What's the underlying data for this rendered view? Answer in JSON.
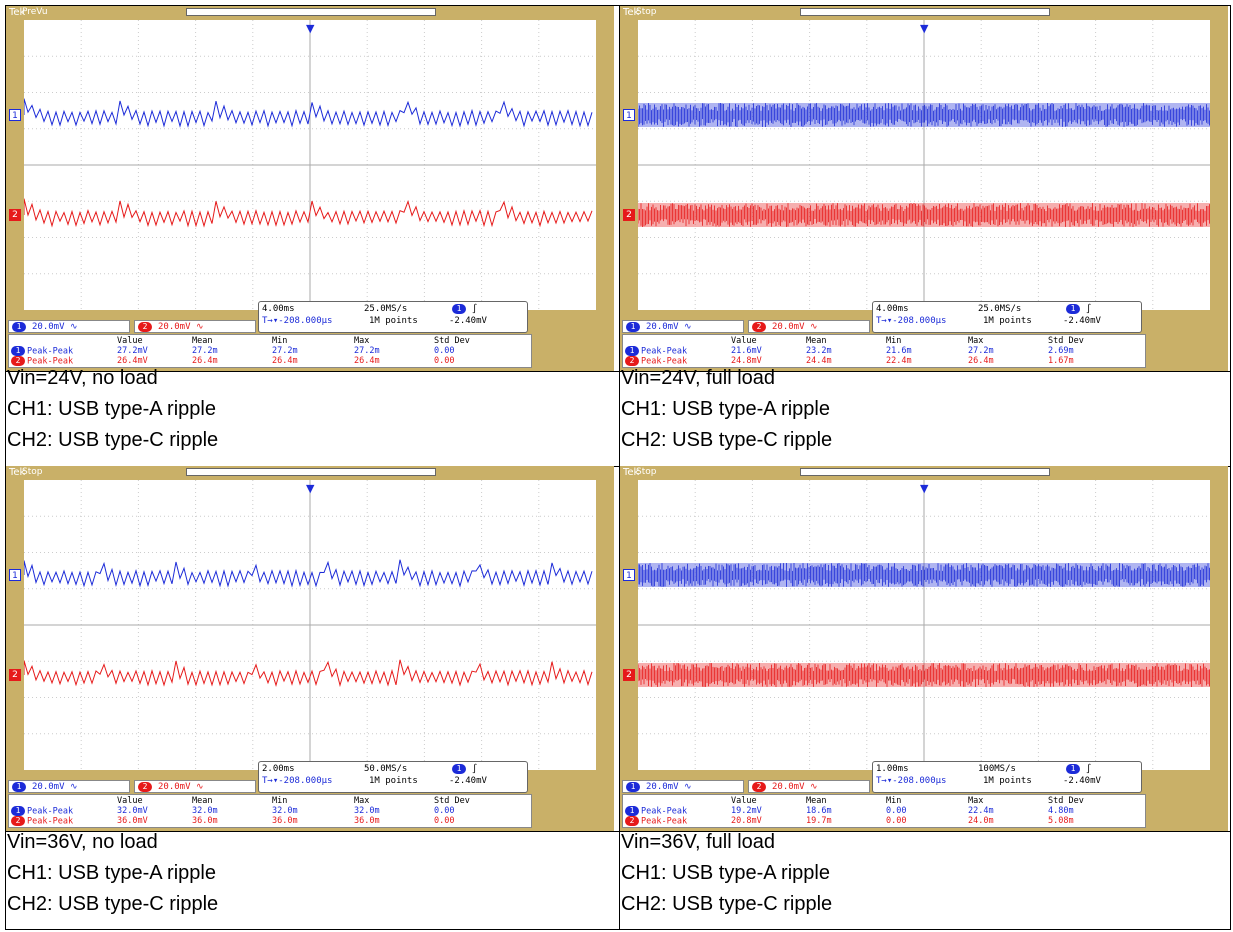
{
  "panels": [
    {
      "brand": "Tek",
      "status": "PreVu",
      "mode": "noload",
      "ch1_scale": "20.0mV",
      "ch2_scale": "20.0mV",
      "timebase": "4.00ms",
      "sample_rate": "25.0MS/s",
      "trigger_pos": "-208.000µs",
      "record": "1M points",
      "trigger_level": "-2.40mV",
      "headers": [
        "Value",
        "Mean",
        "Min",
        "Max",
        "Std Dev"
      ],
      "rows": [
        {
          "label": "Peak-Peak",
          "cells": [
            "27.2mV",
            "27.2m",
            "27.2m",
            "27.2m",
            "0.00"
          ]
        },
        {
          "label": "Peak-Peak",
          "cells": [
            "26.4mV",
            "26.4m",
            "26.4m",
            "26.4m",
            "0.00"
          ]
        }
      ],
      "caption": [
        "Vin=24V, no load",
        "CH1: USB type-A ripple",
        "CH2: USB type-C ripple"
      ]
    },
    {
      "brand": "Tek",
      "status": "Stop",
      "mode": "fullload",
      "ch1_scale": "20.0mV",
      "ch2_scale": "20.0mV",
      "timebase": "4.00ms",
      "sample_rate": "25.0MS/s",
      "trigger_pos": "-208.000µs",
      "record": "1M points",
      "trigger_level": "-2.40mV",
      "headers": [
        "Value",
        "Mean",
        "Min",
        "Max",
        "Std Dev"
      ],
      "rows": [
        {
          "label": "Peak-Peak",
          "cells": [
            "21.6mV",
            "23.2m",
            "21.6m",
            "27.2m",
            "2.69m"
          ]
        },
        {
          "label": "Peak-Peak",
          "cells": [
            "24.8mV",
            "24.4m",
            "22.4m",
            "26.4m",
            "1.67m"
          ]
        }
      ],
      "caption": [
        "Vin=24V, full load",
        "CH1: USB type-A ripple",
        "CH2: USB type-C ripple"
      ]
    },
    {
      "brand": "Tek",
      "status": "Stop",
      "mode": "noload2",
      "ch1_scale": "20.0mV",
      "ch2_scale": "20.0mV",
      "timebase": "2.00ms",
      "sample_rate": "50.0MS/s",
      "trigger_pos": "-208.000µs",
      "record": "1M points",
      "trigger_level": "-2.40mV",
      "headers": [
        "Value",
        "Mean",
        "Min",
        "Max",
        "Std Dev"
      ],
      "rows": [
        {
          "label": "Peak-Peak",
          "cells": [
            "32.0mV",
            "32.0m",
            "32.0m",
            "32.0m",
            "0.00"
          ]
        },
        {
          "label": "Peak-Peak",
          "cells": [
            "36.0mV",
            "36.0m",
            "36.0m",
            "36.0m",
            "0.00"
          ]
        }
      ],
      "caption": [
        "Vin=36V, no load",
        "CH1: USB type-A ripple",
        "CH2: USB type-C ripple"
      ]
    },
    {
      "brand": "Tek",
      "status": "Stop",
      "mode": "fullload",
      "ch1_scale": "20.0mV",
      "ch2_scale": "20.0mV",
      "timebase": "1.00ms",
      "sample_rate": "100MS/s",
      "trigger_pos": "-208.000µs",
      "record": "1M points",
      "trigger_level": "-2.40mV",
      "headers": [
        "Value",
        "Mean",
        "Min",
        "Max",
        "Std Dev"
      ],
      "rows": [
        {
          "label": "Peak-Peak",
          "cells": [
            "19.2mV",
            "18.6m",
            "0.00",
            "22.4m",
            "4.80m"
          ]
        },
        {
          "label": "Peak-Peak",
          "cells": [
            "20.8mV",
            "19.7m",
            "0.00",
            "24.0m",
            "5.08m"
          ]
        }
      ],
      "caption": [
        "Vin=36V, full load",
        "CH1: USB type-A ripple",
        "CH2: USB type-C ripple"
      ]
    }
  ],
  "colors": {
    "ch1": "#1c2bd8",
    "ch2": "#e61a1a",
    "bezel": "#c9b068"
  }
}
